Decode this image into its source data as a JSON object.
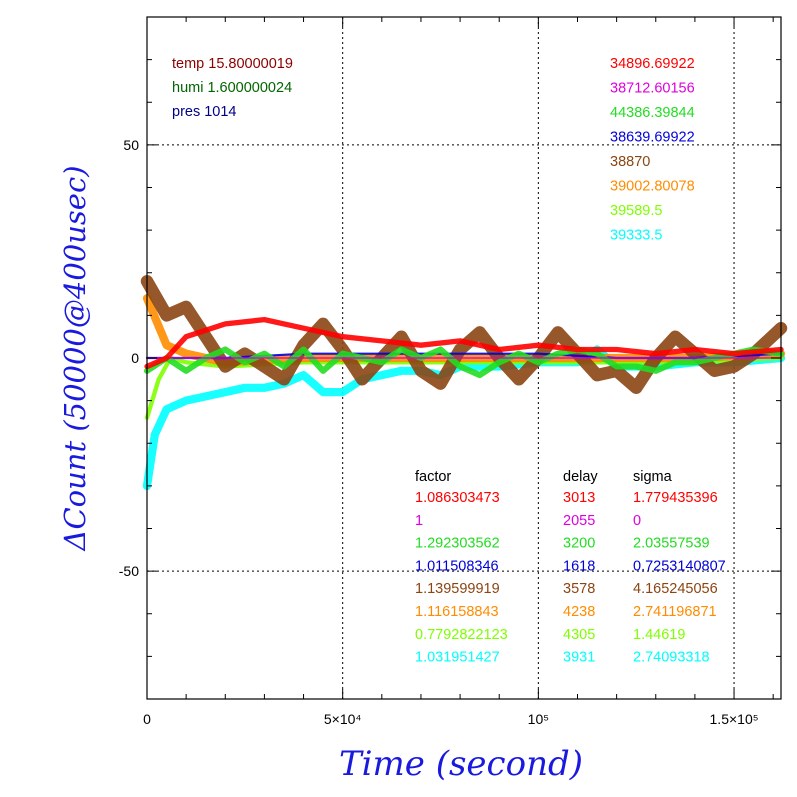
{
  "chart_data": {
    "type": "line",
    "xlabel": "Time (second)",
    "ylabel": "ΔCount (50000@400usec)",
    "xlim": [
      0,
      162000
    ],
    "ylim": [
      -80,
      80
    ],
    "grid": true,
    "x_ticks": [
      {
        "value": 0,
        "label": "0"
      },
      {
        "value": 50000,
        "label": "5×10⁴"
      },
      {
        "value": 100000,
        "label": "10⁵"
      },
      {
        "value": 150000,
        "label": "1.5×10⁵"
      }
    ],
    "y_ticks": [
      {
        "value": -50,
        "label": "-50"
      },
      {
        "value": 0,
        "label": "0"
      },
      {
        "value": 50,
        "label": "50"
      }
    ],
    "conditions": [
      {
        "text": "temp 15.80000019",
        "color": "#8b0000"
      },
      {
        "text": "humi 1.600000024",
        "color": "#006400"
      },
      {
        "text": "pres 1014",
        "color": "#00008b"
      }
    ],
    "series": [
      {
        "baseline": "34896.69922",
        "factor": "1.086303473",
        "delay": "3013",
        "sigma": "1.779435396",
        "color": "#ff0000",
        "points": [
          [
            0,
            -2
          ],
          [
            5000,
            0
          ],
          [
            10000,
            5
          ],
          [
            20000,
            8
          ],
          [
            30000,
            9
          ],
          [
            40000,
            7
          ],
          [
            50000,
            5
          ],
          [
            60000,
            4
          ],
          [
            70000,
            3
          ],
          [
            80000,
            4
          ],
          [
            90000,
            2
          ],
          [
            100000,
            3
          ],
          [
            110000,
            2
          ],
          [
            120000,
            2
          ],
          [
            130000,
            1
          ],
          [
            140000,
            2
          ],
          [
            150000,
            1
          ],
          [
            162000,
            2
          ]
        ]
      },
      {
        "baseline": "38712.60156",
        "factor": "1",
        "delay": "2055",
        "sigma": "0",
        "color": "#dd00dd",
        "points": [
          [
            0,
            0
          ],
          [
            50000,
            0
          ],
          [
            100000,
            0
          ],
          [
            162000,
            0
          ]
        ]
      },
      {
        "baseline": "44386.39844",
        "factor": "1.292303562",
        "delay": "3200",
        "sigma": "2.03557539",
        "color": "#22dd22",
        "points": [
          [
            0,
            -3
          ],
          [
            5000,
            0
          ],
          [
            10000,
            -3
          ],
          [
            15000,
            0
          ],
          [
            20000,
            2
          ],
          [
            25000,
            -1
          ],
          [
            30000,
            1
          ],
          [
            35000,
            -2
          ],
          [
            40000,
            2
          ],
          [
            45000,
            -3
          ],
          [
            50000,
            1
          ],
          [
            55000,
            0
          ],
          [
            60000,
            -1
          ],
          [
            65000,
            2
          ],
          [
            70000,
            0
          ],
          [
            75000,
            2
          ],
          [
            80000,
            -2
          ],
          [
            85000,
            -4
          ],
          [
            90000,
            -1
          ],
          [
            95000,
            1
          ],
          [
            100000,
            -1
          ],
          [
            105000,
            1
          ],
          [
            110000,
            2
          ],
          [
            115000,
            1
          ],
          [
            120000,
            -2
          ],
          [
            125000,
            -2
          ],
          [
            130000,
            -3
          ],
          [
            135000,
            -1
          ],
          [
            140000,
            -1
          ],
          [
            145000,
            0
          ],
          [
            150000,
            1
          ],
          [
            155000,
            2
          ],
          [
            162000,
            1
          ]
        ]
      },
      {
        "baseline": "38639.69922",
        "factor": "1.011508346",
        "delay": "1618",
        "sigma": "0.7253140807",
        "color": "#0000dd",
        "points": [
          [
            0,
            0
          ],
          [
            20000,
            0
          ],
          [
            40000,
            1
          ],
          [
            60000,
            1
          ],
          [
            80000,
            1
          ],
          [
            100000,
            1
          ],
          [
            120000,
            0
          ],
          [
            140000,
            0
          ],
          [
            162000,
            1
          ]
        ]
      },
      {
        "baseline": "38870",
        "factor": "1.139599919",
        "delay": "3578",
        "sigma": "4.165245056",
        "color": "#8b4513",
        "points": [
          [
            0,
            18
          ],
          [
            5000,
            10
          ],
          [
            10000,
            12
          ],
          [
            15000,
            5
          ],
          [
            20000,
            -2
          ],
          [
            25000,
            1
          ],
          [
            30000,
            -2
          ],
          [
            35000,
            -5
          ],
          [
            40000,
            3
          ],
          [
            45000,
            8
          ],
          [
            50000,
            2
          ],
          [
            55000,
            -5
          ],
          [
            60000,
            0
          ],
          [
            65000,
            5
          ],
          [
            70000,
            -3
          ],
          [
            75000,
            -6
          ],
          [
            80000,
            2
          ],
          [
            85000,
            6
          ],
          [
            90000,
            0
          ],
          [
            95000,
            -5
          ],
          [
            100000,
            0
          ],
          [
            105000,
            6
          ],
          [
            110000,
            1
          ],
          [
            115000,
            -4
          ],
          [
            120000,
            -3
          ],
          [
            125000,
            -7
          ],
          [
            130000,
            0
          ],
          [
            135000,
            5
          ],
          [
            140000,
            1
          ],
          [
            145000,
            -3
          ],
          [
            150000,
            -2
          ],
          [
            155000,
            1
          ],
          [
            162000,
            7
          ]
        ]
      },
      {
        "baseline": "39002.80078",
        "factor": "1.116158843",
        "delay": "4238",
        "sigma": "2.741196871",
        "color": "#ff8c00",
        "points": [
          [
            0,
            14
          ],
          [
            5000,
            3
          ],
          [
            10000,
            1
          ],
          [
            20000,
            -1
          ],
          [
            40000,
            0
          ],
          [
            60000,
            0
          ],
          [
            80000,
            0
          ],
          [
            100000,
            0
          ],
          [
            120000,
            0
          ],
          [
            140000,
            0
          ],
          [
            162000,
            1
          ]
        ]
      },
      {
        "baseline": "39589.5",
        "factor": "0.7792822123",
        "delay": "4305",
        "sigma": "1.44619",
        "color": "#7fff00",
        "points": [
          [
            0,
            -14
          ],
          [
            3000,
            -5
          ],
          [
            6000,
            0
          ],
          [
            10000,
            -1
          ],
          [
            20000,
            -2
          ],
          [
            40000,
            -1
          ],
          [
            60000,
            -1
          ],
          [
            80000,
            -1
          ],
          [
            100000,
            -1
          ],
          [
            120000,
            -1
          ],
          [
            140000,
            -1
          ],
          [
            162000,
            0
          ]
        ]
      },
      {
        "baseline": "39333.5",
        "factor": "1.031951427",
        "delay": "3931",
        "sigma": "2.74093318",
        "color": "#00ffff",
        "points": [
          [
            0,
            -30
          ],
          [
            2000,
            -18
          ],
          [
            5000,
            -12
          ],
          [
            10000,
            -10
          ],
          [
            15000,
            -9
          ],
          [
            20000,
            -8
          ],
          [
            25000,
            -7
          ],
          [
            30000,
            -7
          ],
          [
            35000,
            -6
          ],
          [
            40000,
            -4
          ],
          [
            45000,
            -8
          ],
          [
            50000,
            -8
          ],
          [
            55000,
            -5
          ],
          [
            60000,
            -4
          ],
          [
            65000,
            -3
          ],
          [
            70000,
            -3
          ],
          [
            75000,
            -4
          ],
          [
            80000,
            -2
          ],
          [
            90000,
            -2
          ],
          [
            100000,
            -1
          ],
          [
            110000,
            -1
          ],
          [
            115000,
            2
          ],
          [
            120000,
            -2
          ],
          [
            130000,
            -2
          ],
          [
            140000,
            -1
          ],
          [
            150000,
            -1
          ],
          [
            162000,
            0
          ]
        ]
      }
    ],
    "table_headers": [
      "factor",
      "delay",
      "sigma"
    ]
  }
}
